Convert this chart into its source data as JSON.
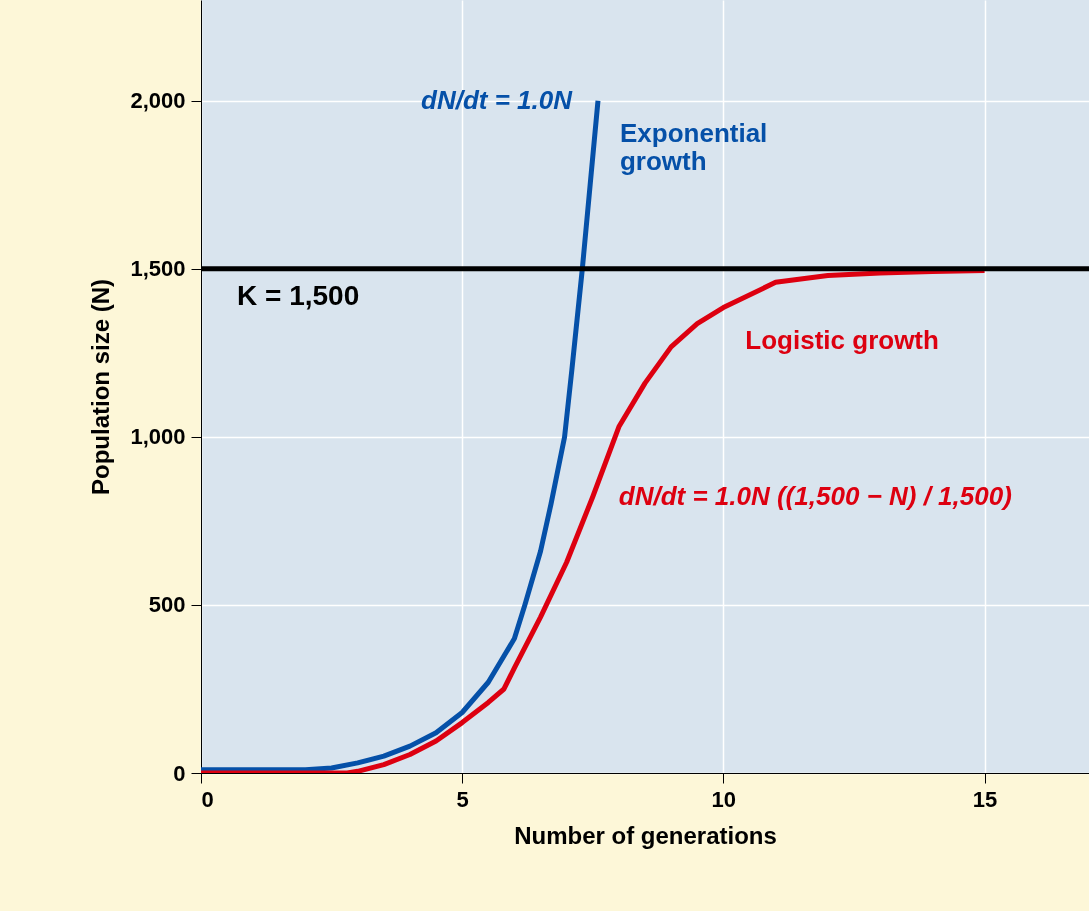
{
  "chart_data": {
    "type": "line",
    "xlabel": "Number of generations",
    "ylabel": "Population size (N)",
    "xlim": [
      0,
      17
    ],
    "ylim": [
      0,
      2300
    ],
    "xticks": [
      0,
      5,
      10,
      15
    ],
    "yticks": [
      0,
      {
        "value": 500,
        "label": "500"
      },
      {
        "value": 1000,
        "label": "1,000"
      },
      {
        "value": 1500,
        "label": "1,500"
      },
      {
        "value": 2000,
        "label": "2,000"
      }
    ],
    "grid": true,
    "legend": false,
    "line_style": "solid",
    "marker": "none",
    "series": [
      {
        "name": "Exponential\ngrowth",
        "color": "#0550a8",
        "x": [
          0,
          1,
          2,
          2.5,
          3,
          3.5,
          4,
          4.5,
          5,
          5.5,
          6,
          6.2,
          6.5,
          6.7,
          6.96,
          7.1,
          7.3,
          7.45,
          7.6
        ],
        "values": [
          10,
          10,
          10,
          15,
          30,
          50,
          80,
          120,
          180,
          270,
          400,
          500,
          660,
          800,
          1000,
          1200,
          1500,
          1750,
          2000
        ]
      },
      {
        "name": "Logistic growth",
        "color": "#dd0010",
        "x": [
          0,
          1,
          2,
          2.8,
          3,
          3.5,
          4,
          4.5,
          5,
          5.5,
          5.8,
          6,
          6.5,
          7,
          7.5,
          8,
          8.5,
          9,
          9.5,
          10,
          11,
          12,
          13,
          14,
          15
        ],
        "values": [
          0,
          0,
          0,
          0,
          5,
          25,
          55,
          95,
          150,
          210,
          250,
          313,
          464,
          627,
          822,
          1030,
          1160,
          1268,
          1337,
          1385,
          1460,
          1480,
          1488,
          1492,
          1495
        ]
      }
    ],
    "ref_lines": [
      {
        "axis": "y",
        "value": 1500,
        "label": "K = 1,500",
        "color": "#000000"
      }
    ],
    "annotations": [
      "dN/dt = 1.0N",
      "dN/dt = 1.0N ((1,500 − N) / 1,500)"
    ]
  }
}
